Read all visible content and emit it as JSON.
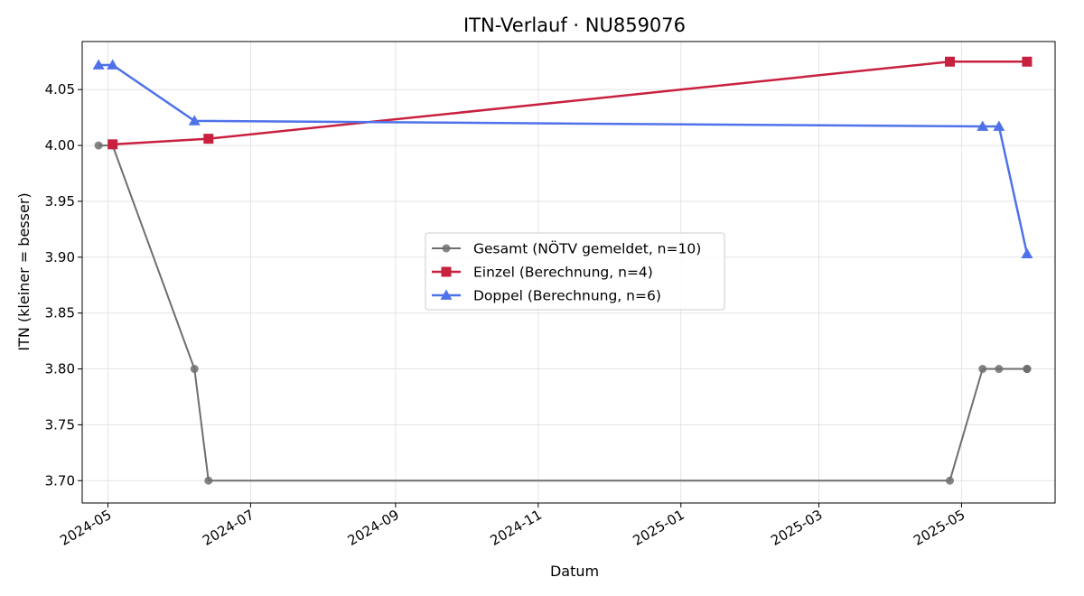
{
  "chart_data": {
    "type": "line",
    "title": "ITN-Verlauf · NU859076",
    "xlabel": "Datum",
    "ylabel": "ITN  (kleiner = besser)",
    "x_type": "date",
    "xlim": [
      "2024-04-20",
      "2025-06-10"
    ],
    "ylim": [
      3.68,
      4.093
    ],
    "x_ticks": [
      "2024-05-01",
      "2024-07-01",
      "2024-09-01",
      "2024-11-01",
      "2025-01-01",
      "2025-03-01",
      "2025-05-01"
    ],
    "x_tick_labels": [
      "2024-05",
      "2024-07",
      "2024-09",
      "2024-11",
      "2025-01",
      "2025-03",
      "2025-05"
    ],
    "y_ticks": [
      3.7,
      3.75,
      3.8,
      3.85,
      3.9,
      3.95,
      4.0,
      4.05
    ],
    "y_tick_labels": [
      "3.70",
      "3.75",
      "3.80",
      "3.85",
      "3.90",
      "3.95",
      "4.00",
      "4.05"
    ],
    "grid": true,
    "legend_position": "center",
    "series": [
      {
        "name": "Gesamt (NÖTV gemeldet, n=10)",
        "color": "#6e6e6e",
        "marker": "circle",
        "points": [
          {
            "x": "2024-04-27",
            "y": 4.0
          },
          {
            "x": "2024-05-03",
            "y": 4.0
          },
          {
            "x": "2024-06-07",
            "y": 3.8
          },
          {
            "x": "2024-06-13",
            "y": 3.7
          },
          {
            "x": "2025-04-26",
            "y": 3.7
          },
          {
            "x": "2025-05-10",
            "y": 3.8
          },
          {
            "x": "2025-05-17",
            "y": 3.8
          },
          {
            "x": "2025-05-29",
            "y": 3.8
          },
          {
            "x": "2025-05-29",
            "y": 3.8
          },
          {
            "x": "2025-05-29",
            "y": 3.8
          }
        ]
      },
      {
        "name": "Einzel (Berechnung, n=4)",
        "color": "#c8203f",
        "marker": "square",
        "points": [
          {
            "x": "2024-05-03",
            "y": 4.001
          },
          {
            "x": "2024-06-13",
            "y": 4.006
          },
          {
            "x": "2025-04-26",
            "y": 4.075
          },
          {
            "x": "2025-05-29",
            "y": 4.075
          }
        ]
      },
      {
        "name": "Doppel (Berechnung, n=6)",
        "color": "#4f72ea",
        "marker": "triangle",
        "points": [
          {
            "x": "2024-04-27",
            "y": 4.072
          },
          {
            "x": "2024-05-03",
            "y": 4.072
          },
          {
            "x": "2024-06-07",
            "y": 4.022
          },
          {
            "x": "2025-05-10",
            "y": 4.017
          },
          {
            "x": "2025-05-17",
            "y": 4.017
          },
          {
            "x": "2025-05-29",
            "y": 3.903
          }
        ]
      }
    ]
  }
}
